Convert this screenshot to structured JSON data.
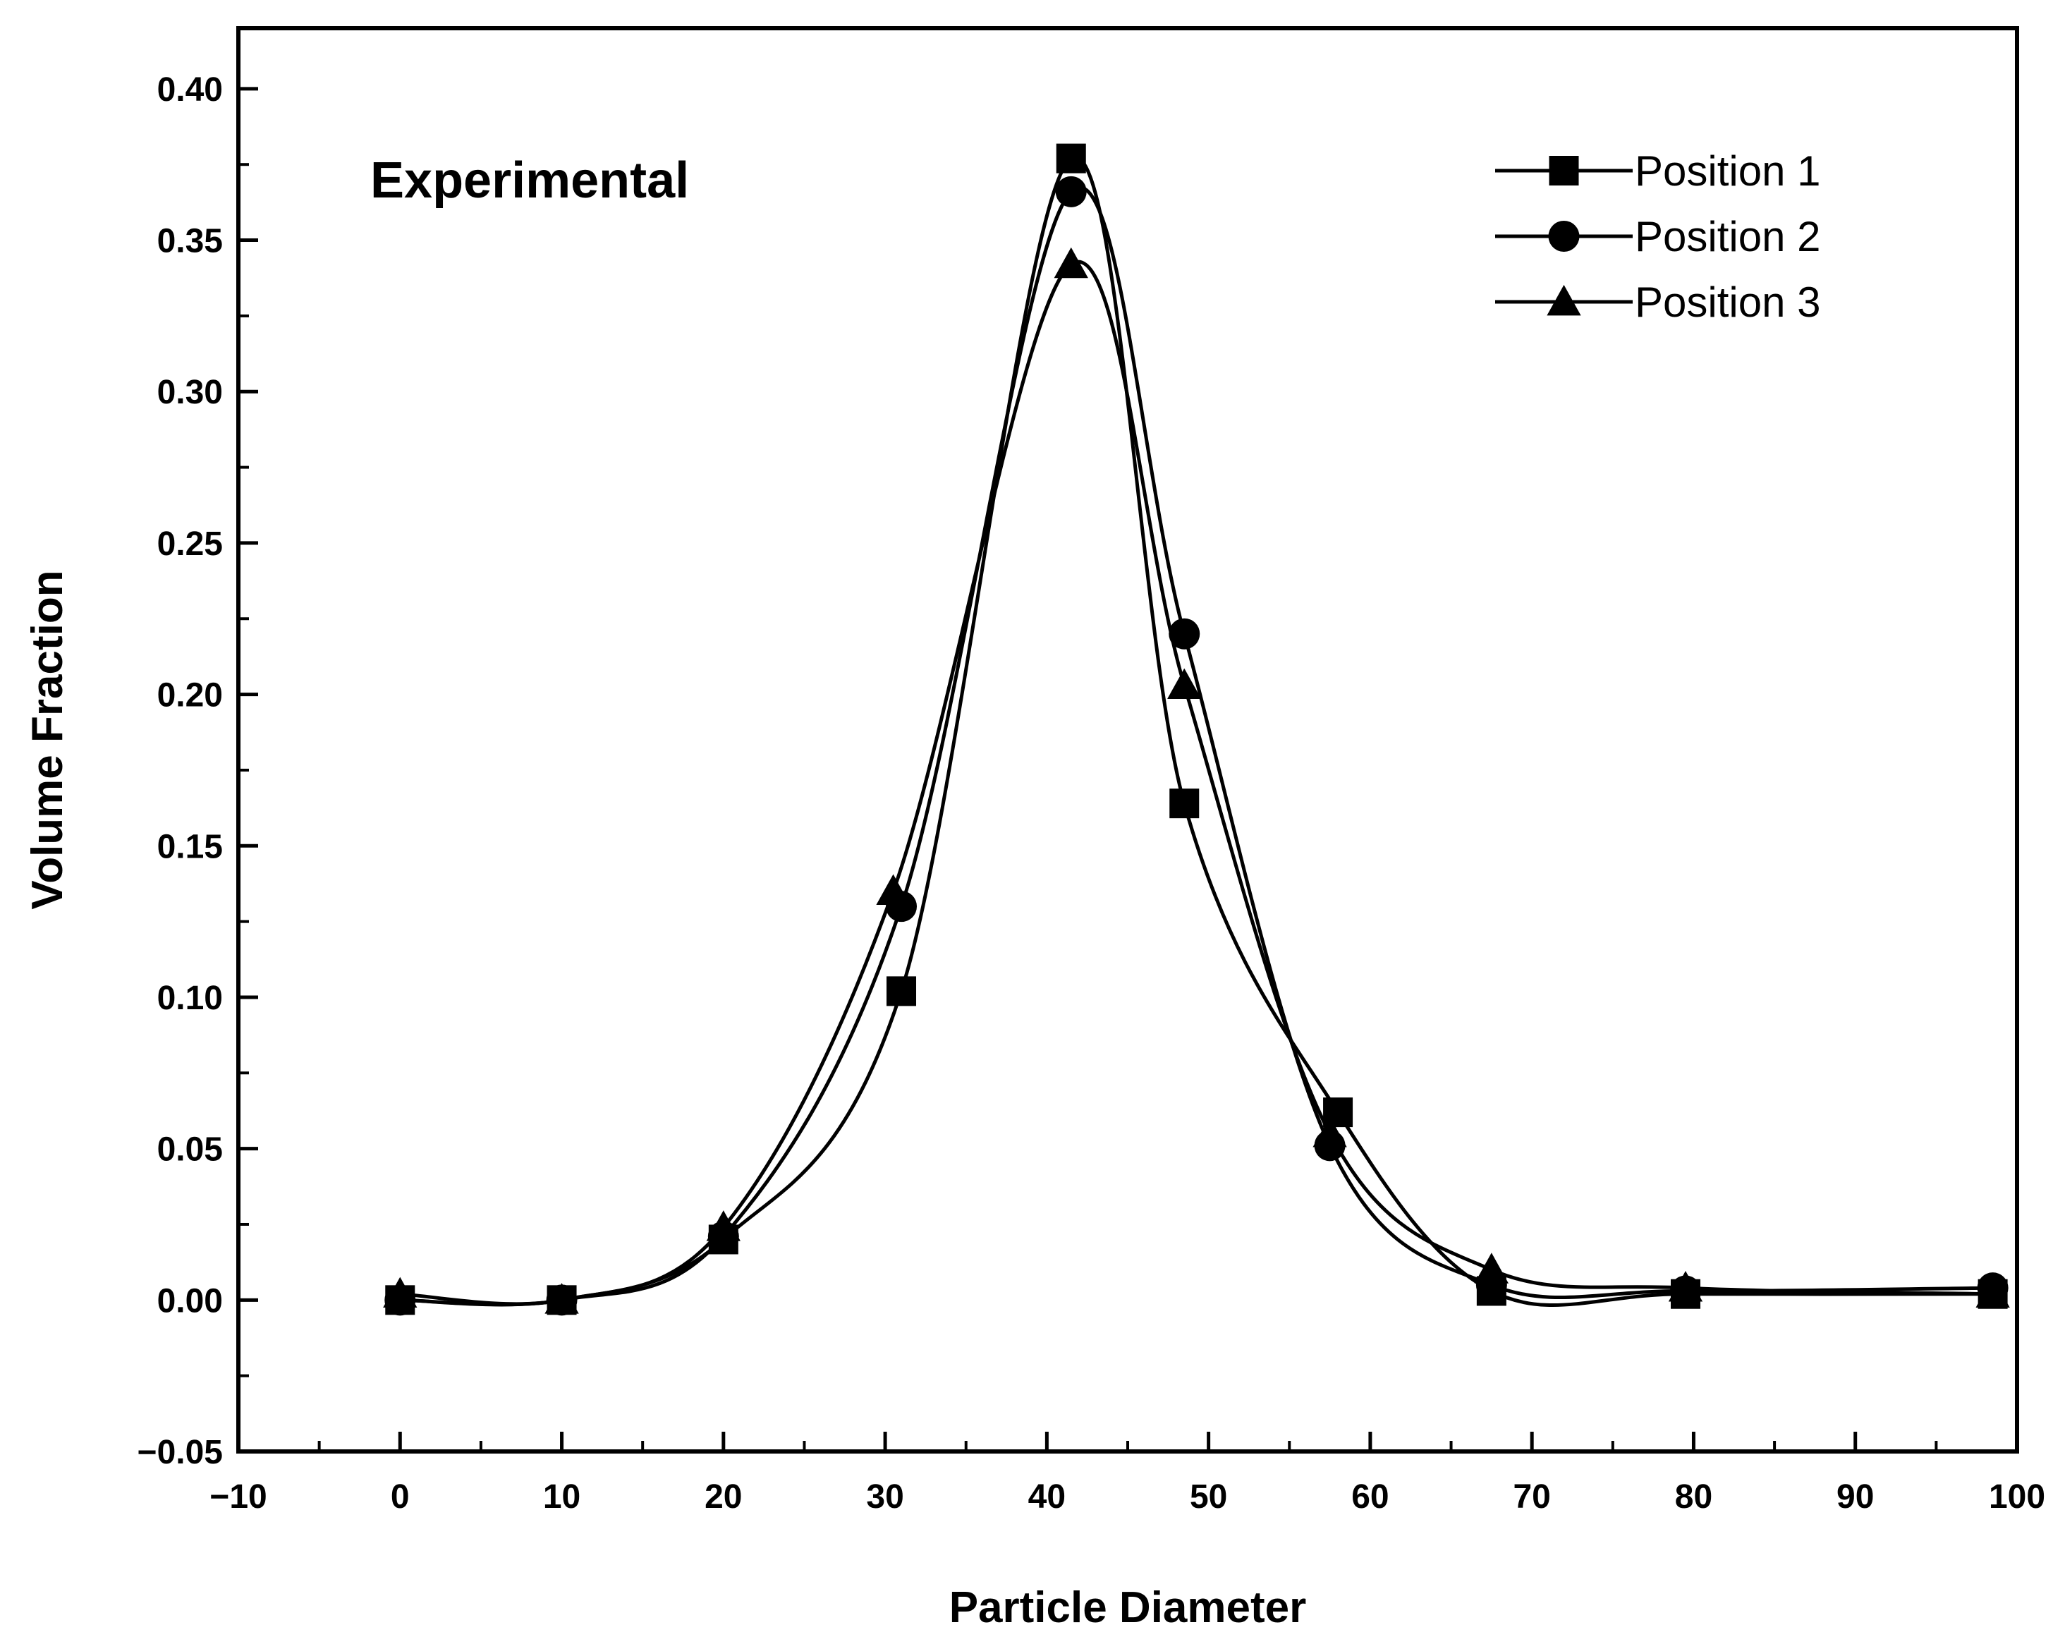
{
  "chart_data": {
    "type": "line",
    "title": "",
    "annotation": "Experimental",
    "xlabel": "Particle Diameter",
    "ylabel": "Volume Fraction",
    "xlim": [
      -10,
      100
    ],
    "ylim": [
      -0.05,
      0.42
    ],
    "x_ticks": [
      -10,
      0,
      10,
      20,
      30,
      40,
      50,
      60,
      70,
      80,
      90,
      100
    ],
    "y_ticks": [
      -0.05,
      0.0,
      0.05,
      0.1,
      0.15,
      0.2,
      0.25,
      0.3,
      0.35,
      0.4
    ],
    "x_tick_labels": [
      "−10",
      "0",
      "10",
      "20",
      "30",
      "40",
      "50",
      "60",
      "70",
      "80",
      "90",
      "100"
    ],
    "y_tick_labels": [
      "−0.05",
      "0.00",
      "0.05",
      "0.10",
      "0.15",
      "0.20",
      "0.25",
      "0.30",
      "0.35",
      "0.40"
    ],
    "grid": false,
    "legend_position": "top-right",
    "series": [
      {
        "name": "Position 1",
        "marker": "square",
        "x": [
          0,
          10,
          20,
          31,
          41.5,
          48.5,
          58,
          67.5,
          79.5,
          98.5
        ],
        "y": [
          0.0,
          0.0,
          0.02,
          0.102,
          0.377,
          0.164,
          0.062,
          0.003,
          0.002,
          0.002
        ]
      },
      {
        "name": "Position 2",
        "marker": "circle",
        "x": [
          0,
          10,
          20,
          31,
          41.5,
          48.5,
          57.5,
          67.5,
          79.5,
          98.5
        ],
        "y": [
          0.0,
          0.0,
          0.021,
          0.13,
          0.366,
          0.22,
          0.051,
          0.005,
          0.003,
          0.004
        ]
      },
      {
        "name": "Position 3",
        "marker": "triangle",
        "x": [
          0,
          10,
          20,
          30.5,
          41.5,
          48.5,
          57.5,
          67.5,
          79.5,
          98.5
        ],
        "y": [
          0.002,
          0.0,
          0.024,
          0.135,
          0.342,
          0.203,
          0.055,
          0.01,
          0.004,
          0.002
        ]
      }
    ]
  }
}
